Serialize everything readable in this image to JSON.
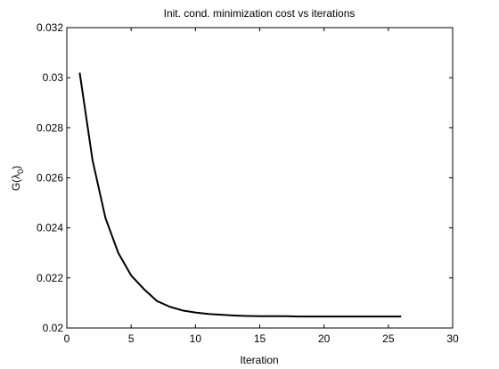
{
  "chart_data": {
    "type": "line",
    "title": "Init. cond. minimization cost vs iterations",
    "xlabel": "Iteration",
    "ylabel_main": "G(λ",
    "ylabel_sub": "0",
    "ylabel_end": ")",
    "xlim": [
      0,
      30
    ],
    "ylim": [
      0.02,
      0.032
    ],
    "xticks": [
      "0",
      "5",
      "10",
      "15",
      "20",
      "25",
      "30"
    ],
    "xtick_values": [
      0,
      5,
      10,
      15,
      20,
      25,
      30
    ],
    "yticks": [
      "0.02",
      "0.022",
      "0.024",
      "0.026",
      "0.028",
      "0.03",
      "0.032"
    ],
    "ytick_values": [
      0.02,
      0.022,
      0.024,
      0.026,
      0.028,
      0.03,
      0.032
    ],
    "grid": false,
    "series": [
      {
        "color": "#000000",
        "x": [
          1,
          2,
          3,
          4,
          5,
          6,
          7,
          8,
          9,
          10,
          11,
          12,
          13,
          14,
          15,
          16,
          17,
          18,
          19,
          20,
          21,
          22,
          23,
          24,
          25,
          26
        ],
        "y": [
          0.0302,
          0.0267,
          0.0244,
          0.023,
          0.0221,
          0.02155,
          0.02108,
          0.02085,
          0.0207,
          0.02062,
          0.02056,
          0.02053,
          0.0205,
          0.02048,
          0.02047,
          0.02047,
          0.02047,
          0.02046,
          0.02046,
          0.02046,
          0.02046,
          0.02046,
          0.02046,
          0.02046,
          0.02046,
          0.02046
        ]
      }
    ]
  }
}
